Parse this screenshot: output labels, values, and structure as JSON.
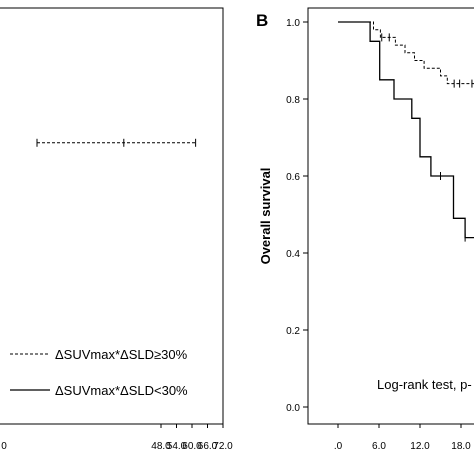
{
  "chart_data": [
    {
      "type": "line",
      "panel": "A (cropped)",
      "xlim": [
        0,
        72
      ],
      "ylim": [
        0,
        1
      ],
      "x_ticks": [
        "0",
        "48.0",
        "54.0",
        "60.0",
        "66.0",
        "72.0"
      ],
      "legend": [
        {
          "label": "ΔSUVmax*ΔSLD≥30%",
          "style": "dashed"
        },
        {
          "label": "ΔSUVmax*ΔSLD<30%",
          "style": "solid"
        }
      ],
      "series": [
        {
          "name": "ΔSUVmax*ΔSLD≥30%",
          "style": "dashed",
          "x": [
            0,
            61.4
          ],
          "y": [
            0.676,
            0.676
          ],
          "censored_x": [
            0,
            33.6,
            61.4
          ]
        }
      ]
    },
    {
      "type": "line",
      "panel": "B",
      "panel_letter": "B",
      "ylabel": "Overall  survival",
      "xlim": [
        0,
        20.5
      ],
      "ylim": [
        0,
        1.05
      ],
      "y_ticks": [
        "0.0",
        "0.2",
        "0.4",
        "0.6",
        "0.8",
        "1.0"
      ],
      "x_ticks": [
        ".0",
        "6.0",
        "12.0",
        "18.0"
      ],
      "annotation": "Log-rank test, p-",
      "series": [
        {
          "name": "ΔSUVmax*ΔSLD≥30%",
          "style": "dashed",
          "x": [
            0,
            5.2,
            5.2,
            6.2,
            6.2,
            8.4,
            8.4,
            9.8,
            9.8,
            11.2,
            11.2,
            12.6,
            12.6,
            15.0,
            15.0,
            16.0,
            16.0,
            20.5
          ],
          "y": [
            1.0,
            1.0,
            0.98,
            0.98,
            0.96,
            0.96,
            0.94,
            0.94,
            0.92,
            0.92,
            0.9,
            0.9,
            0.88,
            0.88,
            0.86,
            0.86,
            0.84,
            0.84
          ],
          "censored_x": [
            6.4,
            7.5,
            17.0,
            17.8,
            19.6
          ]
        },
        {
          "name": "ΔSUVmax*ΔSLD<30%",
          "style": "solid",
          "x": [
            0,
            4.7,
            4.7,
            6.1,
            6.1,
            8.2,
            8.2,
            10.8,
            10.8,
            12.0,
            12.0,
            13.6,
            13.6,
            16.9,
            16.9,
            18.6,
            18.6,
            20.5
          ],
          "y": [
            1.0,
            1.0,
            0.95,
            0.95,
            0.85,
            0.85,
            0.8,
            0.8,
            0.75,
            0.75,
            0.65,
            0.65,
            0.6,
            0.6,
            0.49,
            0.49,
            0.44,
            0.44
          ],
          "censored_x": [
            15.0,
            18.6
          ]
        }
      ]
    }
  ]
}
